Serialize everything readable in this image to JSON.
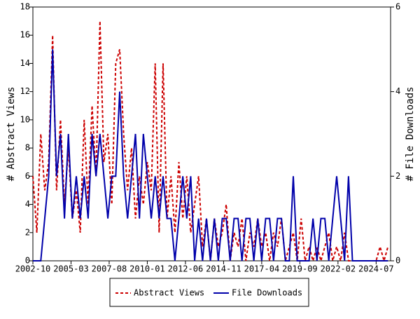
{
  "chart_data": {
    "type": "line",
    "x": [
      "2002-10",
      "2003-01",
      "2003-04",
      "2003-07",
      "2003-10",
      "2004-01",
      "2004-04",
      "2004-07",
      "2004-10",
      "2005-01",
      "2005-04",
      "2005-07",
      "2005-10",
      "2006-01",
      "2006-04",
      "2006-07",
      "2006-10",
      "2007-01",
      "2007-04",
      "2007-07",
      "2007-10",
      "2008-01",
      "2008-04",
      "2008-07",
      "2008-10",
      "2009-01",
      "2009-04",
      "2009-07",
      "2009-10",
      "2010-01",
      "2010-04",
      "2010-07",
      "2010-10",
      "2011-01",
      "2011-04",
      "2011-07",
      "2011-10",
      "2012-01",
      "2012-04",
      "2012-07",
      "2012-10",
      "2013-01",
      "2013-04",
      "2013-07",
      "2013-10",
      "2014-01",
      "2014-04",
      "2014-07",
      "2014-10",
      "2015-01",
      "2015-04",
      "2015-07",
      "2015-10",
      "2016-01",
      "2016-04",
      "2016-07",
      "2016-10",
      "2017-01",
      "2017-04",
      "2017-07",
      "2017-10",
      "2018-01",
      "2018-04",
      "2018-07",
      "2018-10",
      "2019-01",
      "2019-04",
      "2019-07",
      "2019-10",
      "2020-01",
      "2020-04",
      "2020-07",
      "2020-10",
      "2021-01",
      "2021-04",
      "2021-07",
      "2021-10",
      "2022-01",
      "2022-04",
      "2022-07",
      "2022-10",
      "2023-01",
      "2023-04",
      "2023-07",
      "2023-10",
      "2024-01",
      "2024-04",
      "2024-07",
      "2024-10",
      "2025-01",
      "2025-04"
    ],
    "series": [
      {
        "name": "Abstract Views",
        "color": "#cc0000",
        "dashed": true,
        "values": [
          6,
          2,
          9,
          5,
          7,
          16,
          5,
          10,
          4,
          8,
          3,
          5,
          2,
          10,
          4,
          11,
          6,
          17,
          7,
          9,
          4,
          14,
          15,
          9,
          5,
          8,
          3,
          6,
          4,
          7,
          5,
          14,
          2,
          14,
          3,
          6,
          2,
          7,
          3,
          6,
          2,
          4,
          6,
          1,
          3,
          0,
          3,
          1,
          2,
          4,
          0,
          2,
          1,
          3,
          0,
          2,
          1,
          3,
          1,
          2,
          0,
          2,
          1,
          3,
          0,
          1,
          2,
          0,
          3,
          0,
          1,
          0,
          1,
          0,
          1,
          2,
          0,
          1,
          0,
          2,
          0,
          0,
          0,
          0,
          0,
          0,
          0,
          0,
          1,
          0,
          1
        ]
      },
      {
        "name": "File Downloads",
        "color": "#0000aa",
        "dashed": false,
        "axis": "y2",
        "values": [
          0,
          0,
          0,
          1,
          2,
          5,
          2,
          3,
          1,
          3,
          1,
          2,
          1,
          2,
          1,
          3,
          2,
          3,
          2,
          1,
          2,
          2,
          4,
          2,
          1,
          2,
          3,
          1,
          3,
          2,
          1,
          2,
          1,
          2,
          1,
          1,
          0,
          1,
          2,
          1,
          2,
          0,
          1,
          0,
          1,
          0,
          1,
          0,
          1,
          1,
          0,
          1,
          1,
          0,
          1,
          1,
          0,
          1,
          0,
          1,
          1,
          0,
          1,
          1,
          0,
          0,
          2,
          0,
          0,
          0,
          0,
          1,
          0,
          1,
          1,
          0,
          1,
          2,
          1,
          0,
          2,
          0,
          0,
          0,
          0,
          0,
          0,
          0,
          0,
          0,
          0
        ]
      }
    ],
    "xlim": [
      "2002-10",
      "2025-06"
    ],
    "xticks": [
      "2002-10",
      "2005-03",
      "2007-08",
      "2010-01",
      "2012-06",
      "2014-11",
      "2017-04",
      "2019-09",
      "2022-02",
      "2024-07"
    ],
    "ylim": [
      0,
      18
    ],
    "yticks": [
      0,
      2,
      4,
      6,
      8,
      10,
      12,
      14,
      16,
      18
    ],
    "y2lim": [
      0,
      6
    ],
    "y2ticks": [
      0,
      2,
      4,
      6
    ],
    "ylabel": "# Abstract Views",
    "y2label": "# File Downloads"
  }
}
